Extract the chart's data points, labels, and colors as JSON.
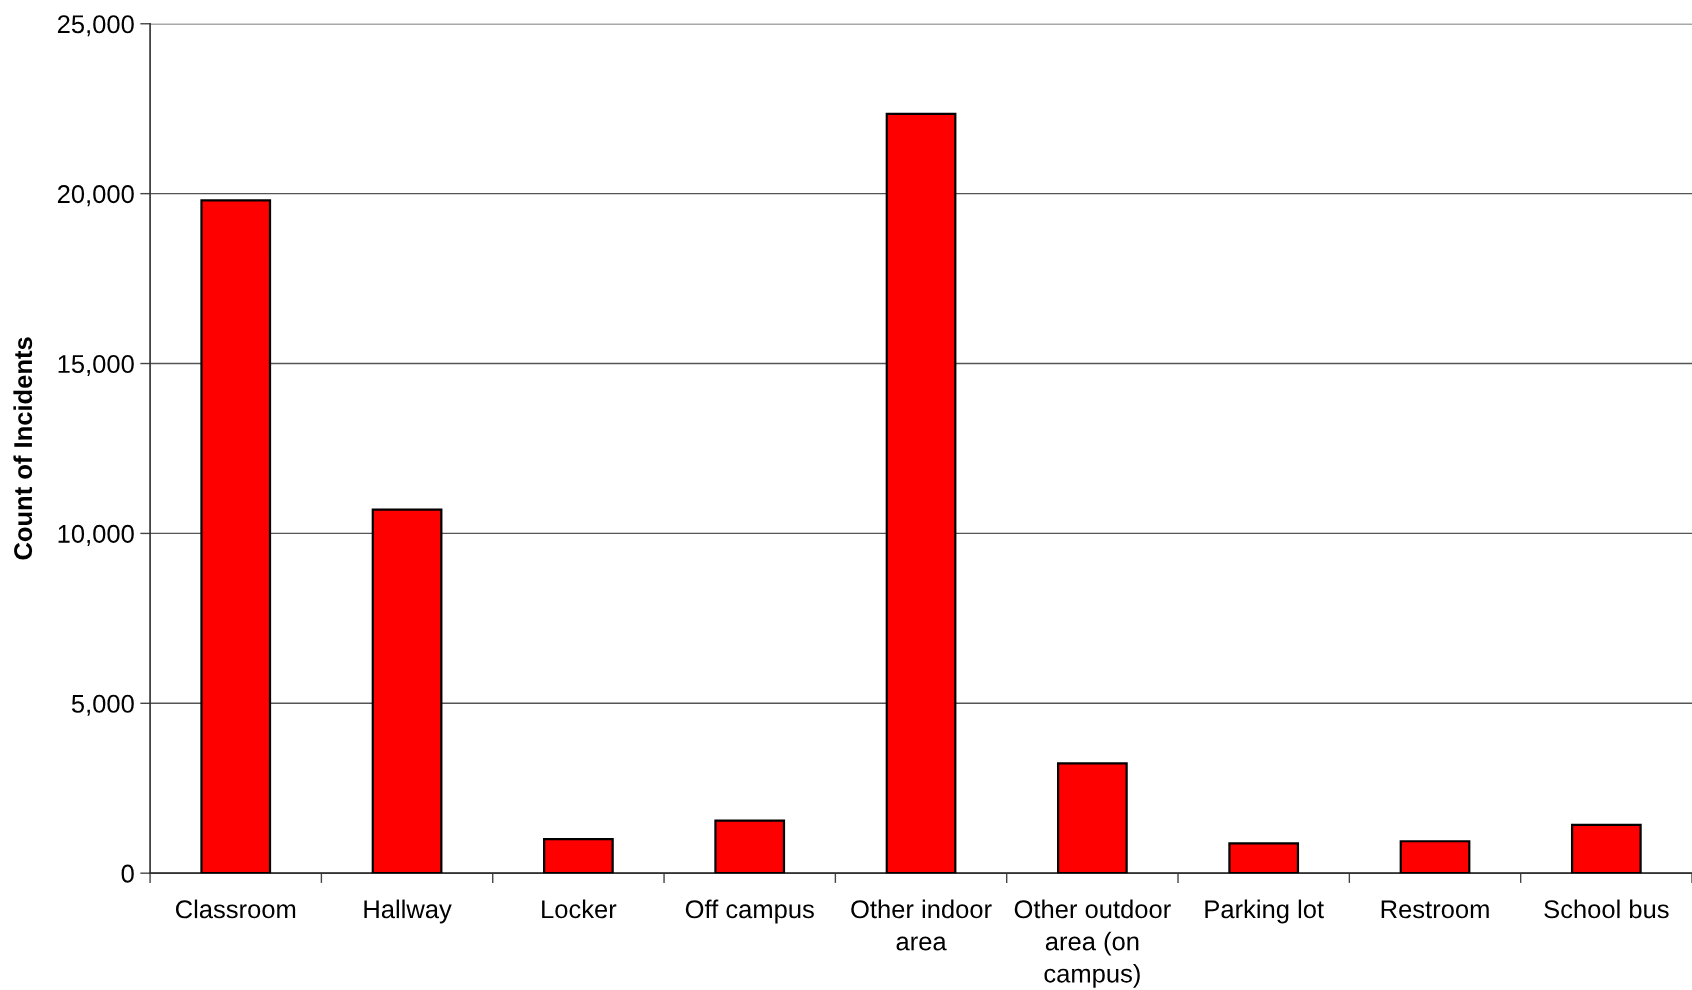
{
  "chart_data": {
    "type": "bar",
    "ylabel": "Count of Incidents",
    "categories": [
      "Classroom",
      "Hallway",
      "Locker",
      "Off campus",
      "Other indoor\narea",
      "Other outdoor\narea (on\ncampus)",
      "Parking lot",
      "Restroom",
      "School bus"
    ],
    "values": [
      19800,
      10700,
      1000,
      1550,
      22350,
      3230,
      880,
      940,
      1420
    ],
    "color": "#ff0000",
    "ylim": [
      0,
      25000
    ],
    "yticks": [
      {
        "value": 0,
        "label": "0"
      },
      {
        "value": 5000,
        "label": "5,000"
      },
      {
        "value": 10000,
        "label": "10,000"
      },
      {
        "value": 15000,
        "label": "15,000"
      },
      {
        "value": 20000,
        "label": "20,000"
      },
      {
        "value": 25000,
        "label": "25,000"
      }
    ],
    "grid": "y",
    "legend": false
  }
}
